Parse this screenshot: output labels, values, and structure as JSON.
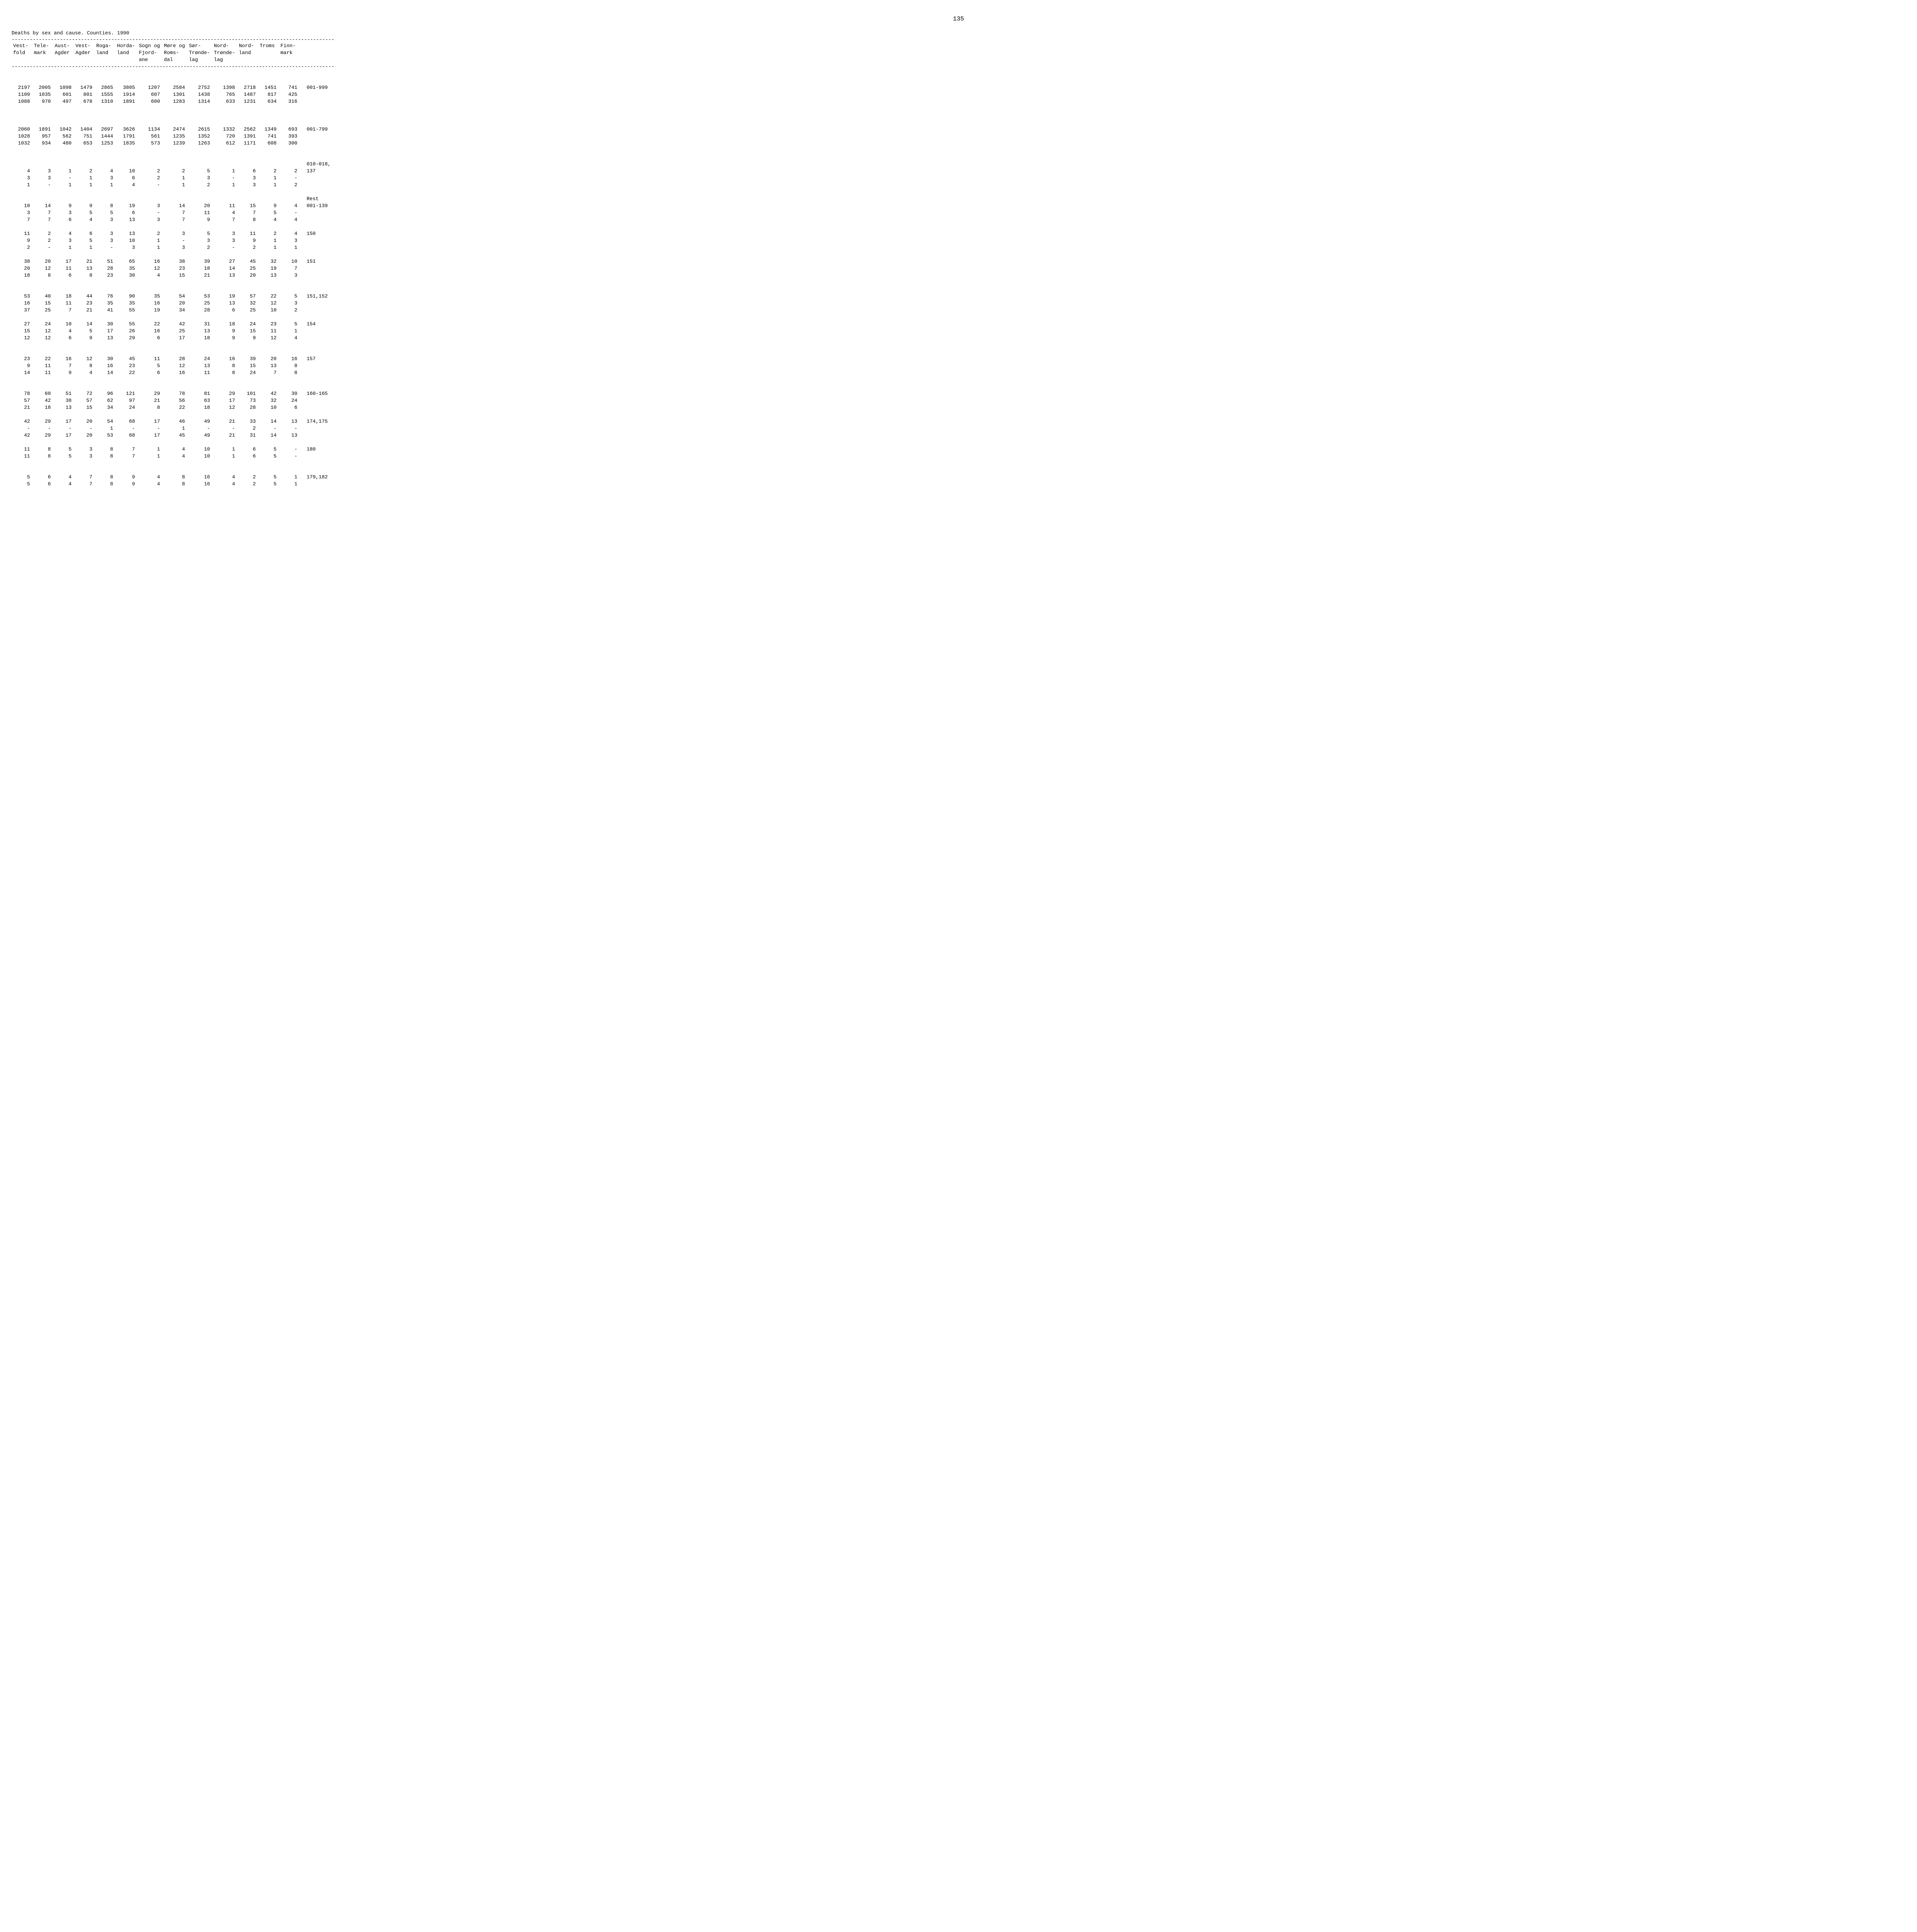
{
  "page_number": "135",
  "title": "Deaths by sex and cause. Counties. 1990",
  "divider": "-----------------------------------------------------------------------------------------------------------",
  "headers": [
    "Vest-\nfold",
    "Tele-\nmark",
    "Aust-\nAgder",
    "Vest-\nAgder",
    "Roga-\nland",
    "Horda-\nland",
    "Sogn og\nFjord-\nane",
    "Møre og\nRoms-\ndal",
    "Sør-\nTrønde-\nlag",
    "Nord-\nTrønde-\nlag",
    "Nord-\nland",
    "Troms",
    "Finn-\nmark",
    ""
  ],
  "rows": [
    {
      "spacer": 2
    },
    {
      "cells": [
        "2197",
        "2005",
        "1098",
        "1479",
        "2865",
        "3805",
        "1207",
        "2584",
        "2752",
        "1398",
        "2718",
        "1451",
        "741",
        "001-999"
      ]
    },
    {
      "cells": [
        "1109",
        "1035",
        "601",
        "801",
        "1555",
        "1914",
        "607",
        "1301",
        "1438",
        "765",
        "1487",
        "817",
        "425",
        ""
      ]
    },
    {
      "cells": [
        "1088",
        "970",
        "497",
        "678",
        "1310",
        "1891",
        "600",
        "1283",
        "1314",
        "633",
        "1231",
        "634",
        "316",
        ""
      ]
    },
    {
      "spacer": 3
    },
    {
      "cells": [
        "2060",
        "1891",
        "1042",
        "1404",
        "2697",
        "3626",
        "1134",
        "2474",
        "2615",
        "1332",
        "2562",
        "1349",
        "693",
        "001-799"
      ]
    },
    {
      "cells": [
        "1028",
        "957",
        "562",
        "751",
        "1444",
        "1791",
        "561",
        "1235",
        "1352",
        "720",
        "1391",
        "741",
        "393",
        ""
      ]
    },
    {
      "cells": [
        "1032",
        "934",
        "480",
        "653",
        "1253",
        "1835",
        "573",
        "1239",
        "1263",
        "612",
        "1171",
        "608",
        "300",
        ""
      ]
    },
    {
      "spacer": 2
    },
    {
      "cells": [
        "",
        "",
        "",
        "",
        "",
        "",
        "",
        "",
        "",
        "",
        "",
        "",
        "",
        "010-018,"
      ]
    },
    {
      "cells": [
        "4",
        "3",
        "1",
        "2",
        "4",
        "10",
        "2",
        "2",
        "5",
        "1",
        "6",
        "2",
        "2",
        "137"
      ]
    },
    {
      "cells": [
        "3",
        "3",
        "-",
        "1",
        "3",
        "6",
        "2",
        "1",
        "3",
        "-",
        "3",
        "1",
        "-",
        ""
      ]
    },
    {
      "cells": [
        "1",
        "-",
        "1",
        "1",
        "1",
        "4",
        "-",
        "1",
        "2",
        "1",
        "3",
        "1",
        "2",
        ""
      ]
    },
    {
      "spacer": 1
    },
    {
      "cells": [
        "",
        "",
        "",
        "",
        "",
        "",
        "",
        "",
        "",
        "",
        "",
        "",
        "",
        "Rest"
      ]
    },
    {
      "cells": [
        "10",
        "14",
        "9",
        "9",
        "8",
        "19",
        "3",
        "14",
        "20",
        "11",
        "15",
        "9",
        "4",
        "001-139"
      ]
    },
    {
      "cells": [
        "3",
        "7",
        "3",
        "5",
        "5",
        "6",
        "-",
        "7",
        "11",
        "4",
        "7",
        "5",
        "-",
        ""
      ]
    },
    {
      "cells": [
        "7",
        "7",
        "6",
        "4",
        "3",
        "13",
        "3",
        "7",
        "9",
        "7",
        "8",
        "4",
        "4",
        ""
      ]
    },
    {
      "spacer": 1
    },
    {
      "cells": [
        "11",
        "2",
        "4",
        "6",
        "3",
        "13",
        "2",
        "3",
        "5",
        "3",
        "11",
        "2",
        "4",
        "150"
      ]
    },
    {
      "cells": [
        "9",
        "2",
        "3",
        "5",
        "3",
        "10",
        "1",
        "-",
        "3",
        "3",
        "9",
        "1",
        "3",
        ""
      ]
    },
    {
      "cells": [
        "2",
        "-",
        "1",
        "1",
        "-",
        "3",
        "1",
        "3",
        "2",
        "-",
        "2",
        "1",
        "1",
        ""
      ]
    },
    {
      "spacer": 1
    },
    {
      "cells": [
        "38",
        "20",
        "17",
        "21",
        "51",
        "65",
        "16",
        "38",
        "39",
        "27",
        "45",
        "32",
        "10",
        "151"
      ]
    },
    {
      "cells": [
        "20",
        "12",
        "11",
        "13",
        "28",
        "35",
        "12",
        "23",
        "18",
        "14",
        "25",
        "19",
        "7",
        ""
      ]
    },
    {
      "cells": [
        "18",
        "8",
        "6",
        "8",
        "23",
        "30",
        "4",
        "15",
        "21",
        "13",
        "20",
        "13",
        "3",
        ""
      ]
    },
    {
      "spacer": 2
    },
    {
      "cells": [
        "53",
        "40",
        "18",
        "44",
        "76",
        "90",
        "35",
        "54",
        "53",
        "19",
        "57",
        "22",
        "5",
        "151,152"
      ]
    },
    {
      "cells": [
        "16",
        "15",
        "11",
        "23",
        "35",
        "35",
        "16",
        "20",
        "25",
        "13",
        "32",
        "12",
        "3",
        ""
      ]
    },
    {
      "cells": [
        "37",
        "25",
        "7",
        "21",
        "41",
        "55",
        "19",
        "34",
        "28",
        "6",
        "25",
        "10",
        "2",
        ""
      ]
    },
    {
      "spacer": 1
    },
    {
      "cells": [
        "27",
        "24",
        "10",
        "14",
        "30",
        "55",
        "22",
        "42",
        "31",
        "18",
        "24",
        "23",
        "5",
        "154"
      ]
    },
    {
      "cells": [
        "15",
        "12",
        "4",
        "5",
        "17",
        "26",
        "16",
        "25",
        "13",
        "9",
        "15",
        "11",
        "1",
        ""
      ]
    },
    {
      "cells": [
        "12",
        "12",
        "6",
        "9",
        "13",
        "29",
        "6",
        "17",
        "18",
        "9",
        "9",
        "12",
        "4",
        ""
      ]
    },
    {
      "spacer": 2
    },
    {
      "cells": [
        "23",
        "22",
        "16",
        "12",
        "30",
        "45",
        "11",
        "28",
        "24",
        "16",
        "39",
        "20",
        "16",
        "157"
      ]
    },
    {
      "cells": [
        "9",
        "11",
        "7",
        "8",
        "16",
        "23",
        "5",
        "12",
        "13",
        "8",
        "15",
        "13",
        "8",
        ""
      ]
    },
    {
      "cells": [
        "14",
        "11",
        "9",
        "4",
        "14",
        "22",
        "6",
        "16",
        "11",
        "8",
        "24",
        "7",
        "8",
        ""
      ]
    },
    {
      "spacer": 2
    },
    {
      "cells": [
        "78",
        "60",
        "51",
        "72",
        "96",
        "121",
        "29",
        "78",
        "81",
        "29",
        "101",
        "42",
        "30",
        "160-165"
      ]
    },
    {
      "cells": [
        "57",
        "42",
        "38",
        "57",
        "62",
        "97",
        "21",
        "56",
        "63",
        "17",
        "73",
        "32",
        "24",
        ""
      ]
    },
    {
      "cells": [
        "21",
        "18",
        "13",
        "15",
        "34",
        "24",
        "8",
        "22",
        "18",
        "12",
        "28",
        "10",
        "6",
        ""
      ]
    },
    {
      "spacer": 1
    },
    {
      "cells": [
        "42",
        "29",
        "17",
        "20",
        "54",
        "68",
        "17",
        "46",
        "49",
        "21",
        "33",
        "14",
        "13",
        "174,175"
      ]
    },
    {
      "cells": [
        "-",
        "-",
        "-",
        "-",
        "1",
        "-",
        "-",
        "1",
        "-",
        "-",
        "2",
        "-",
        "-",
        ""
      ]
    },
    {
      "cells": [
        "42",
        "29",
        "17",
        "20",
        "53",
        "68",
        "17",
        "45",
        "49",
        "21",
        "31",
        "14",
        "13",
        ""
      ]
    },
    {
      "spacer": 1
    },
    {
      "cells": [
        "11",
        "8",
        "5",
        "3",
        "8",
        "7",
        "1",
        "4",
        "10",
        "1",
        "6",
        "5",
        "-",
        "180"
      ]
    },
    {
      "cells": [
        "11",
        "8",
        "5",
        "3",
        "8",
        "7",
        "1",
        "4",
        "10",
        "1",
        "6",
        "5",
        "-",
        ""
      ]
    },
    {
      "spacer": 2
    },
    {
      "cells": [
        "5",
        "6",
        "4",
        "7",
        "8",
        "9",
        "4",
        "8",
        "16",
        "4",
        "2",
        "5",
        "1",
        "179,182"
      ]
    },
    {
      "cells": [
        "5",
        "6",
        "4",
        "7",
        "8",
        "9",
        "4",
        "8",
        "16",
        "4",
        "2",
        "5",
        "1",
        ""
      ]
    }
  ]
}
